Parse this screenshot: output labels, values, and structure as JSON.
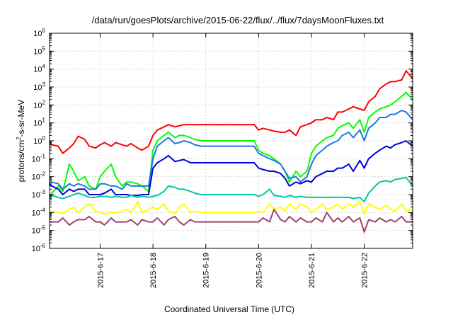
{
  "chart_data": {
    "type": "line",
    "title": "/data/run/goesPlots/archive/2015-06-22/flux/../flux/7daysMoonFluxes.txt",
    "xlabel": "Coordinated Universal Time (UTC)",
    "ylabel": {
      "prefix": "protons/cm",
      "sup": "2",
      "suffix": "-s-sr-MeV"
    },
    "y_scale": "log",
    "ylim": [
      1e-06,
      1000000.0
    ],
    "xlim": [
      "2015-06-16T01:00",
      "2015-06-22T22:00"
    ],
    "grid": true,
    "x_ticks": [
      "2015-6-17",
      "2015-6-18",
      "2015-6-19",
      "2015-6-20",
      "2015-6-21",
      "2015-6-22"
    ],
    "y_ticks": [
      {
        "base": "10",
        "exp": "-6"
      },
      {
        "base": "10",
        "exp": "-5"
      },
      {
        "base": "10",
        "exp": "-4"
      },
      {
        "base": "10",
        "exp": "-3"
      },
      {
        "base": "10",
        "exp": "-2"
      },
      {
        "base": "10",
        "exp": "-1"
      },
      {
        "base": "10",
        "exp": "0"
      },
      {
        "base": "10",
        "exp": "1"
      },
      {
        "base": "10",
        "exp": "2"
      },
      {
        "base": "10",
        "exp": "3"
      },
      {
        "base": "10",
        "exp": "4"
      },
      {
        "base": "10",
        "exp": "5"
      },
      {
        "base": "10",
        "exp": "6"
      }
    ],
    "x": [
      "2015-06-16T01:00",
      "2015-06-16T02:00",
      "2015-06-16T05:00",
      "2015-06-16T07:00",
      "2015-06-16T10:00",
      "2015-06-16T12:00",
      "2015-06-16T14:00",
      "2015-06-16T17:00",
      "2015-06-16T19:00",
      "2015-06-16T22:00",
      "2015-06-17T00:00",
      "2015-06-17T02:00",
      "2015-06-17T05:00",
      "2015-06-17T07:00",
      "2015-06-17T10:00",
      "2015-06-17T12:00",
      "2015-06-17T14:00",
      "2015-06-17T17:00",
      "2015-06-17T19:00",
      "2015-06-17T22:00",
      "2015-06-18T00:00",
      "2015-06-18T02:00",
      "2015-06-18T05:00",
      "2015-06-18T07:00",
      "2015-06-18T10:00",
      "2015-06-18T12:00",
      "2015-06-18T14:00",
      "2015-06-18T17:00",
      "2015-06-18T19:00",
      "2015-06-18T22:00",
      "2015-06-19T00:00",
      "2015-06-19T02:00",
      "2015-06-19T05:00",
      "2015-06-19T07:00",
      "2015-06-19T10:00",
      "2015-06-19T12:00",
      "2015-06-19T14:00",
      "2015-06-19T17:00",
      "2015-06-19T19:00",
      "2015-06-19T22:00",
      "2015-06-20T00:00",
      "2015-06-20T02:00",
      "2015-06-20T05:00",
      "2015-06-20T07:00",
      "2015-06-20T10:00",
      "2015-06-20T12:00",
      "2015-06-20T14:00",
      "2015-06-20T17:00",
      "2015-06-20T19:00",
      "2015-06-20T22:00",
      "2015-06-21T00:00",
      "2015-06-21T02:00",
      "2015-06-21T05:00",
      "2015-06-21T07:00",
      "2015-06-21T10:00",
      "2015-06-21T12:00",
      "2015-06-21T14:00",
      "2015-06-21T17:00",
      "2015-06-21T19:00",
      "2015-06-21T22:00",
      "2015-06-22T00:00",
      "2015-06-22T02:00",
      "2015-06-22T05:00",
      "2015-06-22T07:00",
      "2015-06-22T10:00",
      "2015-06-22T12:00",
      "2015-06-22T14:00",
      "2015-06-22T17:00",
      "2015-06-22T19:00",
      "2015-06-22T22:00"
    ],
    "series": [
      {
        "color": "#ff0000",
        "values": [
          0.8,
          0.6,
          0.5,
          0.2,
          0.4,
          0.7,
          1.8,
          1.2,
          0.5,
          0.4,
          0.6,
          0.8,
          0.5,
          0.8,
          0.6,
          0.5,
          0.7,
          0.4,
          0.3,
          0.5,
          2,
          4,
          6,
          8,
          6,
          7,
          8,
          8,
          8,
          8,
          8,
          8,
          8,
          8,
          8,
          8,
          8,
          8,
          8,
          8,
          4,
          5,
          4,
          3.5,
          3,
          3,
          4,
          2,
          6,
          8,
          10,
          15,
          15,
          20,
          15,
          40,
          40,
          60,
          80,
          60,
          50,
          150,
          300,
          800,
          1500,
          2000,
          2000,
          2500,
          8000,
          3000
        ]
      },
      {
        "color": "#00ff00",
        "values": [
          0.0009,
          0.0012,
          0.003,
          0.0015,
          0.05,
          0.02,
          0.006,
          0.01,
          0.003,
          0.002,
          0.01,
          0.02,
          0.05,
          0.01,
          0.003,
          0.005,
          0.005,
          0.004,
          0.003,
          0.0015,
          0.3,
          1,
          2,
          3,
          1.5,
          2,
          2,
          1.5,
          1.2,
          1,
          1,
          1,
          1,
          1,
          1,
          1,
          1,
          1,
          1,
          1,
          0.3,
          0.2,
          0.15,
          0.1,
          0.05,
          0.02,
          0.005,
          0.02,
          0.01,
          0.02,
          0.2,
          0.5,
          1,
          1.5,
          2,
          5,
          7,
          10,
          5,
          15,
          3,
          20,
          40,
          60,
          80,
          100,
          150,
          300,
          500,
          200
        ]
      },
      {
        "color": "#1e78e6",
        "values": [
          0.005,
          0.005,
          0.004,
          0.002,
          0.004,
          0.003,
          0.004,
          0.003,
          0.002,
          0.002,
          0.004,
          0.004,
          0.003,
          0.003,
          0.002,
          0.004,
          0.003,
          0.003,
          0.003,
          0.003,
          0.1,
          0.5,
          1,
          1.5,
          0.7,
          0.8,
          1,
          0.8,
          0.6,
          0.5,
          0.5,
          0.5,
          0.5,
          0.5,
          0.5,
          0.5,
          0.5,
          0.5,
          0.5,
          0.5,
          0.2,
          0.15,
          0.1,
          0.08,
          0.05,
          0.02,
          0.008,
          0.01,
          0.005,
          0.01,
          0.05,
          0.15,
          0.3,
          0.5,
          0.8,
          1,
          2,
          3,
          1.5,
          4,
          1,
          5,
          10,
          20,
          20,
          30,
          30,
          50,
          40,
          15
        ]
      },
      {
        "color": "#0000dd",
        "values": [
          0.004,
          0.003,
          0.002,
          0.001,
          0.002,
          0.0015,
          0.002,
          0.002,
          0.001,
          0.001,
          0.001,
          0.0012,
          0.002,
          0.001,
          0.001,
          0.001,
          0.0009,
          0.0009,
          0.001,
          0.001,
          0.03,
          0.06,
          0.1,
          0.15,
          0.07,
          0.08,
          0.09,
          0.06,
          0.06,
          0.06,
          0.06,
          0.06,
          0.06,
          0.06,
          0.06,
          0.06,
          0.06,
          0.06,
          0.06,
          0.06,
          0.03,
          0.025,
          0.02,
          0.02,
          0.015,
          0.008,
          0.003,
          0.005,
          0.004,
          0.006,
          0.005,
          0.01,
          0.015,
          0.02,
          0.02,
          0.03,
          0.03,
          0.05,
          0.02,
          0.08,
          0.03,
          0.1,
          0.2,
          0.3,
          0.5,
          0.4,
          0.6,
          0.8,
          1,
          0.5
        ]
      },
      {
        "color": "#00c8a0",
        "values": [
          0.0008,
          0.0009,
          0.0007,
          0.0006,
          0.0008,
          0.001,
          0.0012,
          0.0009,
          0.0007,
          0.0007,
          0.0008,
          0.0008,
          0.0007,
          0.0008,
          0.0007,
          0.0007,
          0.0009,
          0.0007,
          0.0008,
          0.0007,
          0.0008,
          0.0009,
          0.0015,
          0.003,
          0.0025,
          0.002,
          0.002,
          0.0015,
          0.0012,
          0.001,
          0.001,
          0.001,
          0.001,
          0.001,
          0.001,
          0.001,
          0.001,
          0.001,
          0.001,
          0.001,
          0.0008,
          0.001,
          0.002,
          0.0009,
          0.0008,
          0.0007,
          0.0009,
          0.0007,
          0.0008,
          0.0007,
          0.0007,
          0.0007,
          0.0007,
          0.0007,
          0.0007,
          0.0007,
          0.0007,
          0.0007,
          0.0006,
          0.0007,
          0.0004,
          0.0012,
          0.003,
          0.005,
          0.006,
          0.005,
          0.007,
          0.008,
          0.009,
          0.003
        ]
      },
      {
        "color": "#ffff00",
        "values": [
          0.0001,
          0.00012,
          0.0001,
          9e-05,
          0.00015,
          0.0002,
          0.0001,
          0.0002,
          0.0003,
          0.00012,
          0.0001,
          8e-05,
          0.0001,
          9e-05,
          0.00012,
          0.00015,
          0.0001,
          0.0004,
          0.0001,
          0.00015,
          0.0002,
          0.00015,
          0.0003,
          0.00012,
          9e-05,
          0.0002,
          0.0003,
          0.0001,
          0.00012,
          0.0001,
          0.0001,
          0.0001,
          0.0001,
          0.0001,
          0.0001,
          0.0001,
          0.0001,
          0.0001,
          0.0001,
          0.0001,
          0.00012,
          0.0001,
          0.0003,
          0.00015,
          0.0002,
          0.00012,
          0.0003,
          0.00015,
          0.0003,
          0.0002,
          0.0001,
          0.00015,
          0.0003,
          0.00015,
          0.0002,
          0.0003,
          0.00015,
          0.0003,
          0.0002,
          0.0004,
          8e-05,
          0.0003,
          0.0002,
          0.00015,
          0.00025,
          0.00015,
          0.00012,
          0.0003,
          0.00012,
          0.00015
        ]
      },
      {
        "color": "#a04070",
        "values": [
          3e-05,
          3e-05,
          3e-05,
          5e-05,
          2e-05,
          3e-05,
          4e-05,
          4e-05,
          6e-05,
          3e-05,
          3e-05,
          2e-05,
          5e-05,
          3e-05,
          3e-05,
          3e-05,
          4e-05,
          2e-05,
          4e-05,
          3e-05,
          3e-05,
          5e-05,
          2e-05,
          4e-05,
          6e-05,
          3e-05,
          2e-05,
          4e-05,
          3e-05,
          3e-05,
          3e-05,
          3e-05,
          3e-05,
          3e-05,
          3e-05,
          3e-05,
          3e-05,
          3e-05,
          3e-05,
          3e-05,
          3e-05,
          5e-05,
          3e-05,
          0.00015,
          4e-05,
          3e-05,
          6e-05,
          3e-05,
          5e-05,
          3e-05,
          3e-05,
          5e-05,
          3e-05,
          0.0001,
          3e-05,
          5e-05,
          3e-05,
          6e-05,
          3e-05,
          5e-05,
          8e-06,
          4e-05,
          3e-05,
          5e-05,
          3e-05,
          4e-05,
          3e-05,
          6e-05,
          3e-05,
          3e-05
        ]
      }
    ]
  }
}
